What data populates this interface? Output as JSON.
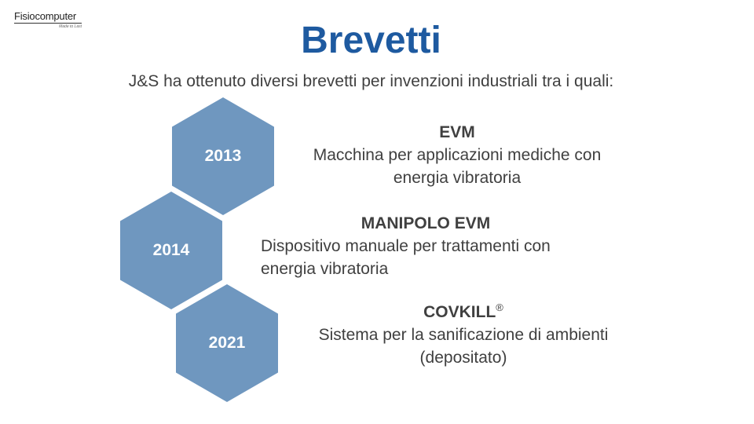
{
  "logo": {
    "name": "Fisiocomputer",
    "tagline": "Made to Last"
  },
  "title": "Brevetti",
  "subtitle": "J&S ha ottenuto diversi brevetti per invenzioni industriali tra i quali:",
  "patents": [
    {
      "year": "2013",
      "name": "EVM",
      "desc_line1": "Macchina per applicazioni mediche con",
      "desc_line2": "energia vibratoria"
    },
    {
      "year": "2014",
      "name": "MANIPOLO EVM",
      "desc_line1": "Dispositivo manuale per trattamenti con",
      "desc_line2": "energia vibratoria"
    },
    {
      "year": "2021",
      "name": "COVKILL",
      "mark": "®",
      "desc_line1": "Sistema per la sanificazione di ambienti",
      "desc_line2": "(depositato)"
    }
  ],
  "colors": {
    "title": "#1e5aa0",
    "hexagon": "#6f97bf",
    "text": "#404040"
  }
}
